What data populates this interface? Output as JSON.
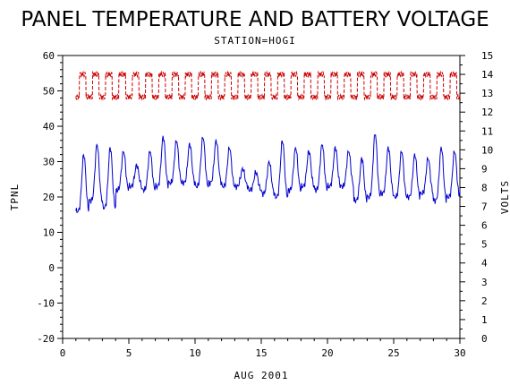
{
  "chart_data": {
    "type": "line",
    "title": "PANEL TEMPERATURE AND BATTERY VOLTAGE",
    "subtitle": "STATION=HOGI",
    "xlabel": "AUG 2001",
    "ylabel_left": "TPNL",
    "ylabel_right": "VOLTS",
    "xlim": [
      0,
      30
    ],
    "ylim_left": [
      -20,
      60
    ],
    "ylim_right": [
      0,
      15
    ],
    "x_ticks": [
      "0",
      "5",
      "10",
      "15",
      "20",
      "25",
      "30"
    ],
    "y_left_ticks": [
      "-20",
      "-10",
      "0",
      "10",
      "20",
      "30",
      "40",
      "50",
      "60"
    ],
    "y_right_ticks": [
      "0",
      "1",
      "2",
      "3",
      "4",
      "5",
      "6",
      "7",
      "8",
      "9",
      "10",
      "11",
      "12",
      "13",
      "14",
      "15"
    ],
    "grid": false,
    "series": [
      {
        "axis": "left",
        "color": "#0000cc",
        "daily_min": [
          16,
          19,
          17,
          22,
          23,
          22,
          23,
          24,
          24,
          23,
          24,
          23,
          23,
          22,
          21,
          20,
          22,
          23,
          22,
          23,
          23,
          19,
          20,
          21,
          20,
          20,
          21,
          19,
          20,
          22
        ],
        "daily_max": [
          32,
          35,
          34,
          33,
          29,
          33,
          37,
          36,
          35,
          37,
          36,
          34,
          28,
          27,
          30,
          36,
          34,
          33,
          35,
          34,
          33,
          31,
          38,
          34,
          33,
          32,
          31,
          34,
          33,
          31
        ],
        "start": 1.0,
        "end": 30.0
      },
      {
        "axis": "right",
        "color": "#cc0000",
        "dash": "4,2",
        "daily_min": 12.8,
        "daily_max": 14.0,
        "start": 1.0,
        "end": 30.0
      }
    ]
  }
}
